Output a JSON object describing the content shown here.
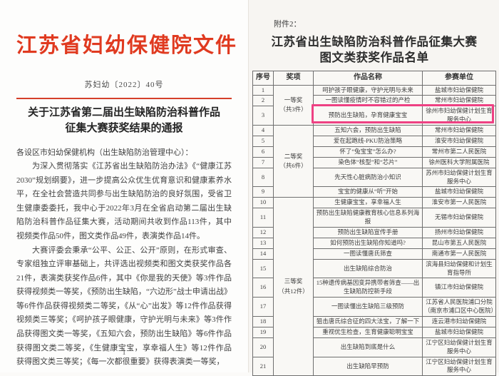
{
  "left_page": {
    "accent_color": "#e03a20",
    "rule_color": "#d5402a",
    "letterhead": "江苏省妇幼保健院文件",
    "doc_number": "苏妇幼〔2022〕40号",
    "title": "关于江苏省第二届出生缺陷防治科普作品征集大赛获奖结果的通报",
    "salutation": "各设区市妇幼保健机构（出生缺陷防治管理中心）：",
    "paragraphs": [
      "为深入贯彻落实《江苏省出生缺陷防治办法》《“健康江苏2030”规划纲要》，进一步提高公众优生优育意识和健康素养水平，在全社会营造共同参与出生缺陷防治的良好氛围，受省卫生健康委委托，我中心于2022年3月在全省启动第二届出生缺陷防治科普作品征集大赛，活动期间共收到作品113件，其中视频类作品50件，图文类作品49件，表演类作品14件。",
      "大赛评委会秉承“公平、公正、公开”原则，在形式审查、专家组独立评审基础上，共评选出视频类和图文类获奖作品各21件，表演类获奖作品6件，其中《你是我的天使》等3件作品获得视频类一等奖，《预防出生缺陷，“六边形”战士申请出战》等6件作品获得视频类二等奖，《从“心”出发》等12件作品获得视频类三等奖；《呵护孩子眼健康，守护光明与未来》等3件作品获得图文类一等奖，《五知六会，预防出生缺陷》等6件作品获得图文类二等奖，《生健康宝宝，享幸福人生》等12件作品获得图文类三等奖；《每一次都很重要》获得表演类一等奖，"
    ],
    "page_number": "1"
  },
  "right_page": {
    "attachment_label": "附件2：",
    "title_lines": [
      "江苏省出生缺陷防治科普作品征集大赛",
      "图文类获奖作品名单"
    ],
    "table": {
      "headers": [
        "序号",
        "奖项",
        "作品名称",
        "参赛单位"
      ],
      "highlight_color": "#ee4183",
      "award_groups": [
        {
          "label": "一等奖",
          "count_note": "（共3件）",
          "rows": 3
        },
        {
          "label": "二等奖",
          "count_note": "（共6件）",
          "rows": 6
        },
        {
          "label": "三等奖",
          "count_note": "（共12件）",
          "rows": 12
        }
      ],
      "rows": [
        {
          "no": "1",
          "title": "呵护孩子眼健康，守护光明与未来",
          "unit": "盐城市妇幼保健院"
        },
        {
          "no": "2",
          "title": "一图读懂疫情时不容错过的产检",
          "unit": "常州市妇幼保健院"
        },
        {
          "no": "3",
          "title": "预防出生缺陷，孕育健康宝宝",
          "unit": "徐州市妇幼保健计划生育服务中心",
          "highlighted": true
        },
        {
          "no": "4",
          "title": "五知六会，预防出生缺陷",
          "unit": "常州市妇幼保健院"
        },
        {
          "no": "5",
          "title": "爱在起跑线-PKU防治策略",
          "unit": "淮安市妇幼保健院"
        },
        {
          "no": "6",
          "title": "怀了“兔宝宝”怎么办?",
          "unit": "常州市第二人民医院"
        },
        {
          "no": "7",
          "title": "染色体“核型”和“芯片”",
          "unit": "徐州医科大学附属医院"
        },
        {
          "no": "8",
          "title": "先天性心脏病防治小知识",
          "unit": "苏州市妇幼保健计划生育服务中心"
        },
        {
          "no": "9",
          "title": "宝宝的健康从“听”开始",
          "unit": "盐城市妇幼保健院"
        },
        {
          "no": "10",
          "title": "生健康宝宝，享幸福人生",
          "unit": "淮安市第一人民医院"
        },
        {
          "no": "11",
          "title": "预防出生缺陷健康教育核心信息系列海报",
          "unit": "无锡市妇幼保健院"
        },
        {
          "no": "12",
          "title": "预防出生缺陷宣传手册",
          "unit": "扬州市妇幼保健院"
        },
        {
          "no": "13",
          "title": "如何预防出生缺陷你知道吗?",
          "unit": "昆山市第五人民医院"
        },
        {
          "no": "14",
          "title": "一图读懂唐氏筛查",
          "unit": "南通市第一人民医院"
        },
        {
          "no": "15",
          "title": "出生缺陷综合防治",
          "unit": "滨海县妇幼保健和计划生育指导所"
        },
        {
          "no": "16",
          "title": "15种遗传病基因变异携带者筛查——出生缺陷防控新手段",
          "unit": "镇江市妇幼保健院"
        },
        {
          "no": "17",
          "title": "一图读懂出生缺陷三级预防",
          "unit": "江苏省人民医院浦口分院（南京市浦口区中心医院）"
        },
        {
          "no": "18",
          "title": "狙击唐氏综合征的四大法宝，了解一下",
          "unit": "连云港市妇幼保健院"
        },
        {
          "no": "19",
          "title": "重视优生检查，生育健康聪明宝宝",
          "unit": "盐城市妇幼保健院"
        },
        {
          "no": "20",
          "title": "出生缺陷到底是什么",
          "unit": "江宁区妇幼保健计划生育服务中心"
        },
        {
          "no": "21",
          "title": "出生缺陷早预防",
          "unit": "江宁区妇幼保健计划生育服务中心"
        }
      ]
    }
  }
}
